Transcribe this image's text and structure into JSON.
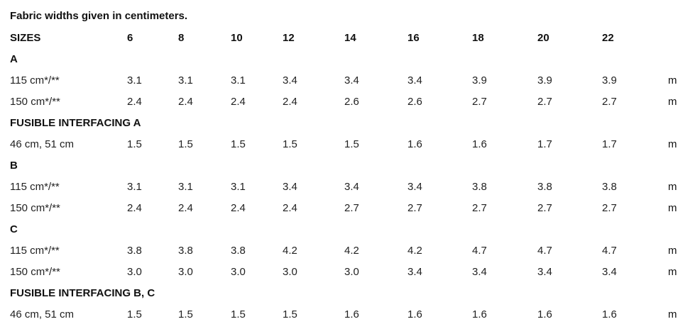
{
  "title": "Fabric widths given in centimeters.",
  "header": {
    "label": "SIZES",
    "sizes": [
      "6",
      "8",
      "10",
      "12",
      "14",
      "16",
      "18",
      "20",
      "22"
    ]
  },
  "rows": [
    {
      "kind": "section",
      "label": "A"
    },
    {
      "kind": "data",
      "label": "115 cm*/**",
      "values": [
        "3.1",
        "3.1",
        "3.1",
        "3.4",
        "3.4",
        "3.4",
        "3.9",
        "3.9",
        "3.9"
      ],
      "unit": "m"
    },
    {
      "kind": "data",
      "label": "150 cm*/**",
      "values": [
        "2.4",
        "2.4",
        "2.4",
        "2.4",
        "2.6",
        "2.6",
        "2.7",
        "2.7",
        "2.7"
      ],
      "unit": "m"
    },
    {
      "kind": "section",
      "label": "FUSIBLE INTERFACING A"
    },
    {
      "kind": "data",
      "label": "46 cm, 51 cm",
      "values": [
        "1.5",
        "1.5",
        "1.5",
        "1.5",
        "1.5",
        "1.6",
        "1.6",
        "1.7",
        "1.7"
      ],
      "unit": "m"
    },
    {
      "kind": "section",
      "label": "B"
    },
    {
      "kind": "data",
      "label": "115 cm*/**",
      "values": [
        "3.1",
        "3.1",
        "3.1",
        "3.4",
        "3.4",
        "3.4",
        "3.8",
        "3.8",
        "3.8"
      ],
      "unit": "m"
    },
    {
      "kind": "data",
      "label": "150 cm*/**",
      "values": [
        "2.4",
        "2.4",
        "2.4",
        "2.4",
        "2.7",
        "2.7",
        "2.7",
        "2.7",
        "2.7"
      ],
      "unit": "m"
    },
    {
      "kind": "section",
      "label": "C"
    },
    {
      "kind": "data",
      "label": "115 cm*/**",
      "values": [
        "3.8",
        "3.8",
        "3.8",
        "4.2",
        "4.2",
        "4.2",
        "4.7",
        "4.7",
        "4.7"
      ],
      "unit": "m"
    },
    {
      "kind": "data",
      "label": "150 cm*/**",
      "values": [
        "3.0",
        "3.0",
        "3.0",
        "3.0",
        "3.0",
        "3.4",
        "3.4",
        "3.4",
        "3.4"
      ],
      "unit": "m"
    },
    {
      "kind": "section",
      "label": "FUSIBLE INTERFACING B, C"
    },
    {
      "kind": "data",
      "label": "46 cm, 51 cm",
      "values": [
        "1.5",
        "1.5",
        "1.5",
        "1.5",
        "1.6",
        "1.6",
        "1.6",
        "1.6",
        "1.6"
      ],
      "unit": "m"
    }
  ]
}
